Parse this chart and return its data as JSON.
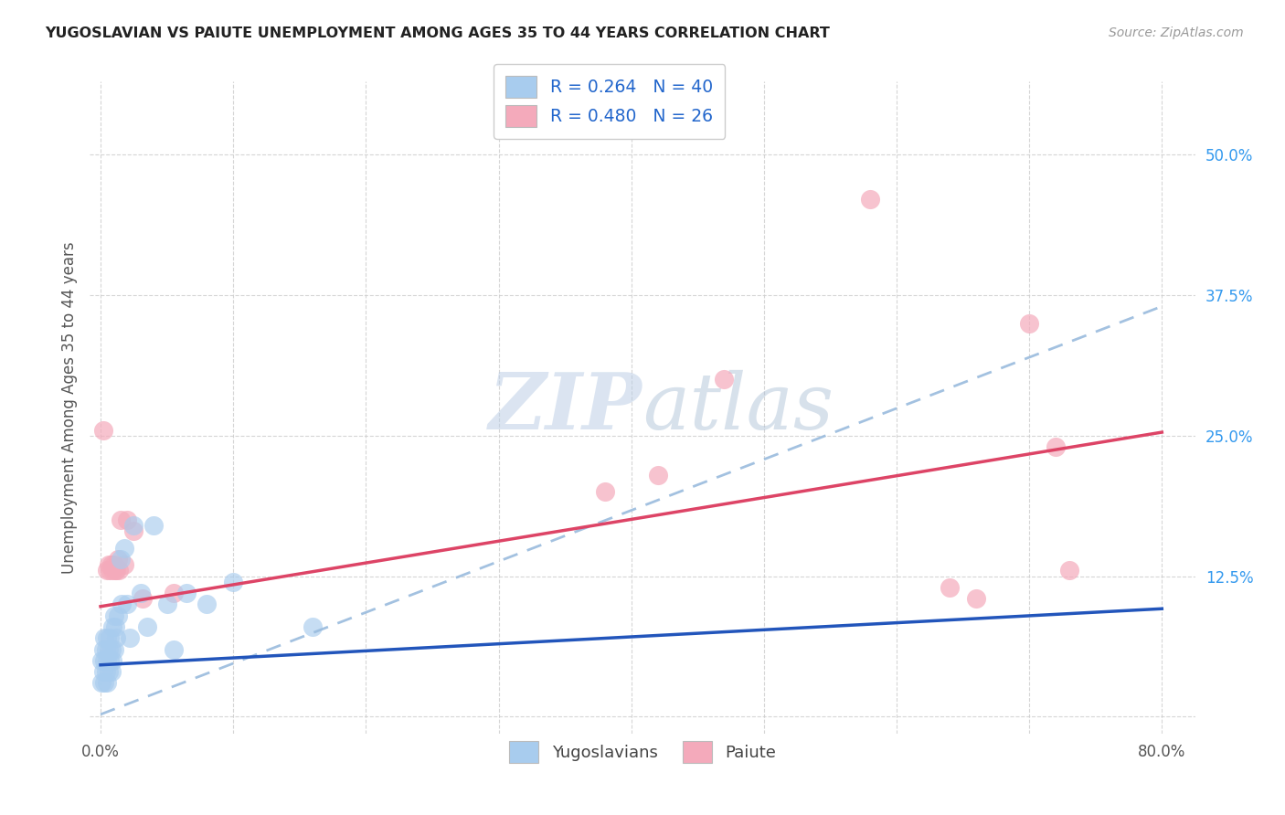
{
  "title": "YUGOSLAVIAN VS PAIUTE UNEMPLOYMENT AMONG AGES 35 TO 44 YEARS CORRELATION CHART",
  "source": "Source: ZipAtlas.com",
  "ylabel": "Unemployment Among Ages 35 to 44 years",
  "xlim_min": -0.008,
  "xlim_max": 0.825,
  "ylim_min": -0.015,
  "ylim_max": 0.565,
  "xtick_positions": [
    0.0,
    0.1,
    0.2,
    0.3,
    0.4,
    0.5,
    0.6,
    0.7,
    0.8
  ],
  "xticklabels": [
    "0.0%",
    "",
    "",
    "",
    "",
    "",
    "",
    "",
    "80.0%"
  ],
  "ytick_positions": [
    0.0,
    0.125,
    0.25,
    0.375,
    0.5
  ],
  "ytick_labels": [
    "",
    "12.5%",
    "25.0%",
    "37.5%",
    "50.0%"
  ],
  "blue_scatter_color": "#A8CCEE",
  "pink_scatter_color": "#F4AABB",
  "blue_line_color": "#2255BB",
  "pink_line_color": "#DD4466",
  "blue_dashed_color": "#99BBDD",
  "grid_color": "#CCCCCC",
  "watermark_color": "#C8D8EE",
  "title_color": "#222222",
  "source_color": "#999999",
  "ylabel_color": "#555555",
  "ytick_color": "#3399EE",
  "xtick_color": "#555555",
  "yugoslavian_x": [
    0.001,
    0.001,
    0.002,
    0.002,
    0.003,
    0.003,
    0.003,
    0.004,
    0.004,
    0.005,
    0.005,
    0.005,
    0.006,
    0.006,
    0.007,
    0.007,
    0.008,
    0.008,
    0.009,
    0.009,
    0.01,
    0.01,
    0.011,
    0.012,
    0.013,
    0.015,
    0.016,
    0.018,
    0.02,
    0.022,
    0.025,
    0.03,
    0.035,
    0.04,
    0.05,
    0.055,
    0.065,
    0.08,
    0.1,
    0.16
  ],
  "yugoslavian_y": [
    0.03,
    0.05,
    0.04,
    0.06,
    0.03,
    0.05,
    0.07,
    0.04,
    0.06,
    0.03,
    0.05,
    0.07,
    0.04,
    0.06,
    0.05,
    0.07,
    0.04,
    0.06,
    0.05,
    0.08,
    0.06,
    0.09,
    0.08,
    0.07,
    0.09,
    0.14,
    0.1,
    0.15,
    0.1,
    0.07,
    0.17,
    0.11,
    0.08,
    0.17,
    0.1,
    0.06,
    0.11,
    0.1,
    0.12,
    0.08
  ],
  "paiute_x": [
    0.002,
    0.005,
    0.006,
    0.007,
    0.008,
    0.009,
    0.01,
    0.011,
    0.012,
    0.013,
    0.014,
    0.015,
    0.018,
    0.02,
    0.025,
    0.032,
    0.055,
    0.38,
    0.42,
    0.47,
    0.58,
    0.64,
    0.66,
    0.7,
    0.72,
    0.73
  ],
  "paiute_y": [
    0.255,
    0.13,
    0.135,
    0.13,
    0.135,
    0.13,
    0.135,
    0.13,
    0.13,
    0.14,
    0.13,
    0.175,
    0.135,
    0.175,
    0.165,
    0.105,
    0.11,
    0.2,
    0.215,
    0.3,
    0.46,
    0.115,
    0.105,
    0.35,
    0.24,
    0.13
  ],
  "blue_line_x0": 0.0,
  "blue_line_x1": 0.8,
  "blue_line_y0": 0.046,
  "blue_line_y1": 0.096,
  "pink_line_x0": 0.0,
  "pink_line_x1": 0.8,
  "pink_line_y0": 0.098,
  "pink_line_y1": 0.253,
  "dash_line_x0": 0.0,
  "dash_line_x1": 0.8,
  "dash_line_y0": 0.002,
  "dash_line_y1": 0.365
}
